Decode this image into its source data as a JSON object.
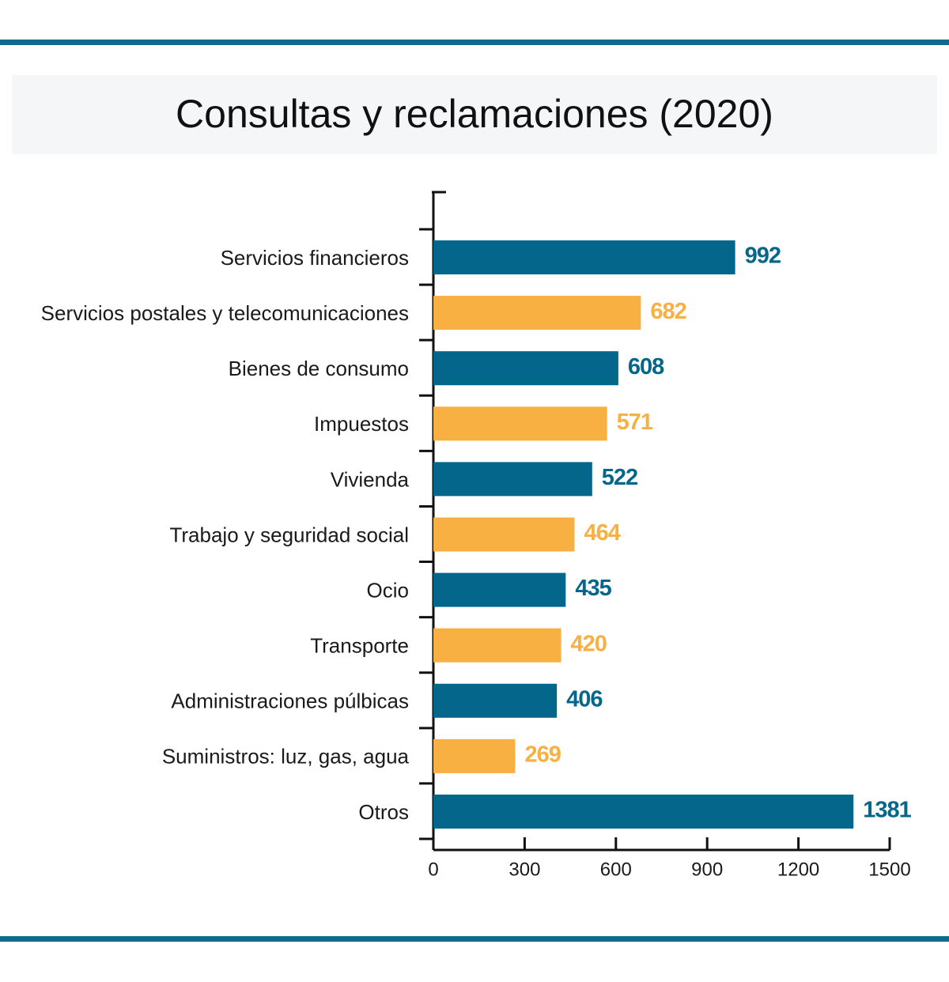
{
  "chart_data": {
    "type": "bar",
    "orientation": "horizontal",
    "title": "Consultas y reclamaciones (2020)",
    "categories": [
      "Servicios financieros",
      "Servicios postales y telecomunicaciones",
      "Bienes de consumo",
      "Impuestos",
      "Vivienda",
      "Trabajo y seguridad social",
      "Ocio",
      "Transporte",
      "Administraciones púlbicas",
      "Suministros: luz, gas, agua",
      "Otros"
    ],
    "values": [
      992,
      682,
      608,
      571,
      522,
      464,
      435,
      420,
      406,
      269,
      1381
    ],
    "colors": [
      "#04668a",
      "#f9b042",
      "#04668a",
      "#f9b042",
      "#04668a",
      "#f9b042",
      "#04668a",
      "#f9b042",
      "#04668a",
      "#f9b042",
      "#04668a"
    ],
    "xlim": [
      0,
      1500
    ],
    "xticks": [
      0,
      300,
      600,
      900,
      1200,
      1500
    ]
  }
}
